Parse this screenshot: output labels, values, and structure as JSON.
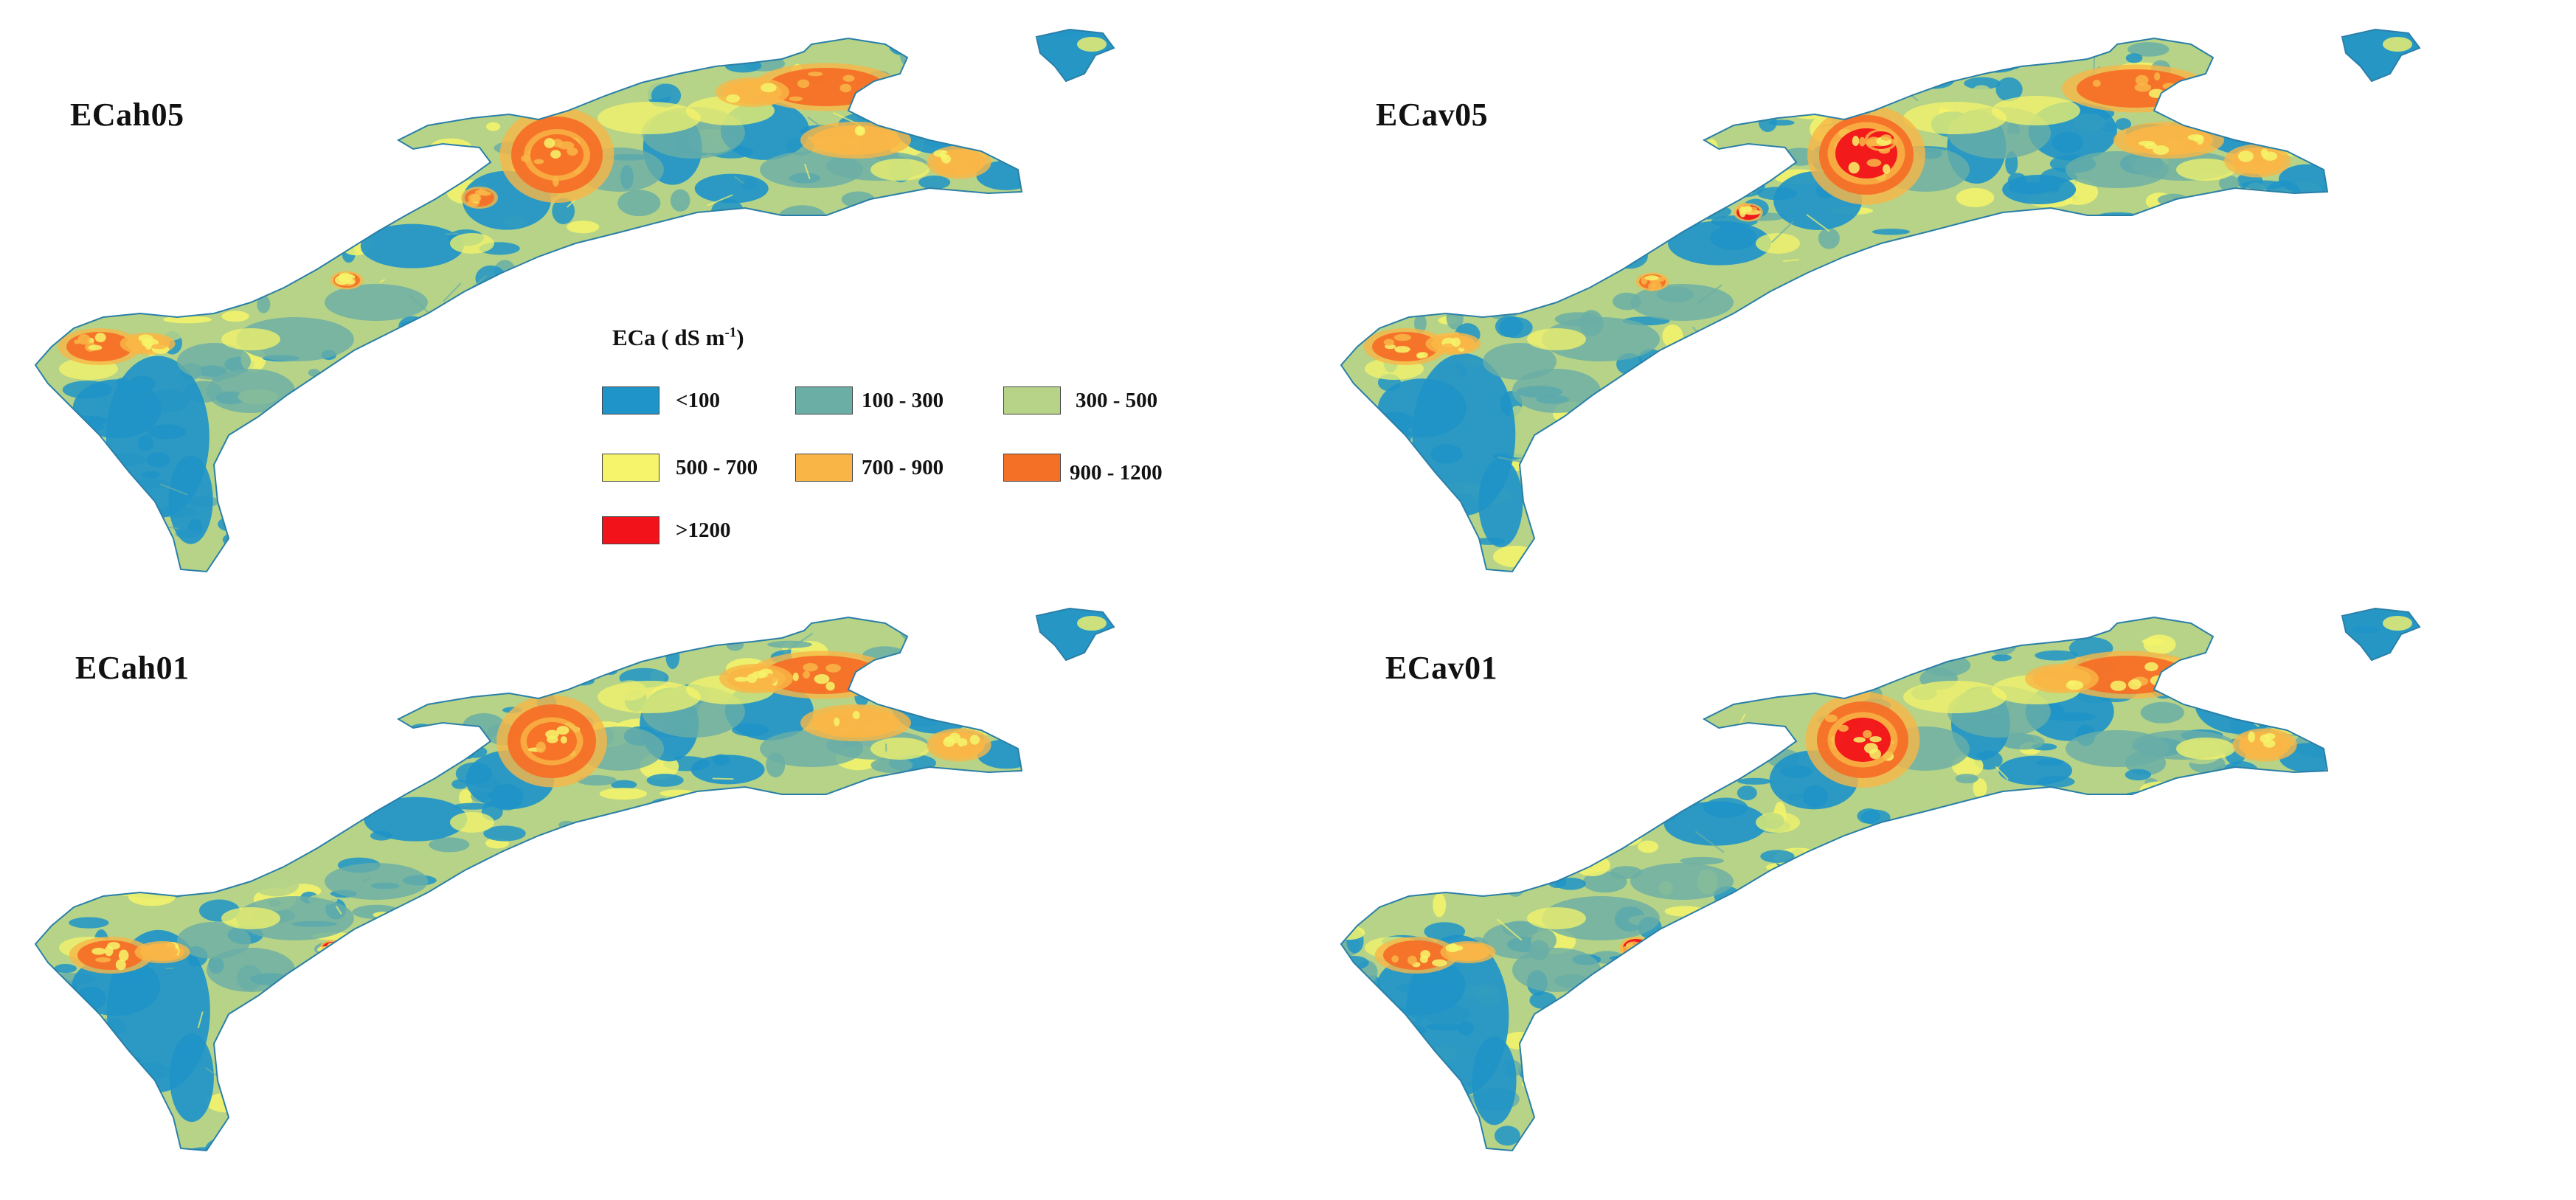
{
  "figure": {
    "panels": [
      {
        "label": "ECah05"
      },
      {
        "label": "ECav05"
      },
      {
        "label": "ECah01"
      },
      {
        "label": "ECav01"
      }
    ],
    "legend": {
      "title": "ECa ( dS m",
      "title_superscript": "-1",
      "title_close": ")",
      "classes": [
        {
          "label": "<100",
          "color": "#1f94c8"
        },
        {
          "label": "100 - 300",
          "color": "#6aaea6"
        },
        {
          "label": "300 - 500",
          "color": "#b6d388"
        },
        {
          "label": "500 - 700",
          "color": "#f6f46a"
        },
        {
          "label": "700 - 900",
          "color": "#f9b646"
        },
        {
          "label": "900 - 1200",
          "color": "#f57027"
        },
        {
          "label": ">1200",
          "color": "#f2121a"
        }
      ]
    }
  }
}
